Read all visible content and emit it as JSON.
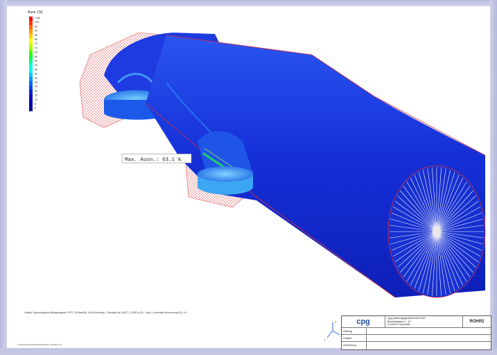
{
  "legend": {
    "title": "Ausn. [%]",
    "ticks": [
      ">100",
      "100",
      "95",
      "90",
      "85",
      "80",
      "75",
      "70",
      "65",
      "60",
      "55",
      "50",
      "45",
      "40",
      "35",
      "30",
      "25",
      "20",
      "15",
      "10",
      "5",
      "0"
    ],
    "colors": [
      "#ff0000",
      "#ff3300",
      "#ff6600",
      "#ff9900",
      "#ffcc00",
      "#ffff00",
      "#ccff00",
      "#99ff00",
      "#33ff00",
      "#00ff33",
      "#00ff99",
      "#00ffcc",
      "#00ffff",
      "#00ccff",
      "#0099ff",
      "#0066ff",
      "#0044ee",
      "#0022dd",
      "#0011cc",
      "#0000bb",
      "#0000aa",
      "#000099"
    ]
  },
  "annotation": {
    "max_label": "Max. Ausn.: 63.1 %"
  },
  "footer": {
    "description": "Ladfall: Spannungsbild (Belastungsfall: PFS, 30.0bar/AB, 5.ErzFprüfung), -Überlast (für 180°C-1,3 MPa (GD - Maxi. ) minimale Berechnung 63.1 %",
    "file_path": "T:\\DATEN\\Projekte\\ROHR2\\Modell_ROHR2.rohr"
  },
  "axes": {
    "z": "Z",
    "x": "X",
    "y": "Y"
  },
  "title_block": {
    "logo": "cpg",
    "company_lines": [
      "cpg planungsgesellschaft mbH",
      "Bonnstrasse 6 - 10",
      "D-09113 Chemnitz"
    ],
    "program": "ROHR2",
    "rows": [
      "Auftrag",
      "Projekt",
      "Zeichnung"
    ]
  },
  "colors": {
    "pipe_blue": "#1a2bd8",
    "mesh_red": "#e0303a",
    "frame": "#c9cbe6"
  }
}
